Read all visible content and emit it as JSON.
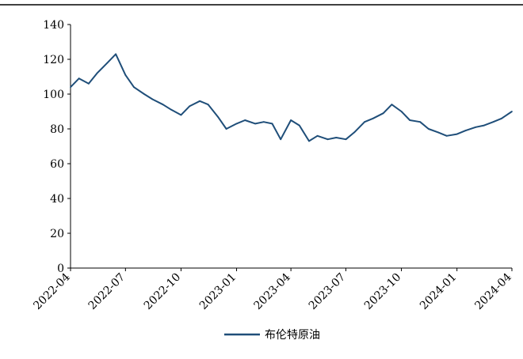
{
  "chart_data": {
    "type": "line",
    "title": "",
    "xlabel": "",
    "ylabel": "",
    "ylim": [
      0,
      140
    ],
    "y_ticks": [
      0,
      20,
      40,
      60,
      80,
      100,
      120,
      140
    ],
    "x_ticks": [
      "2022-04",
      "2022-07",
      "2022-10",
      "2023-01",
      "2023-04",
      "2023-07",
      "2023-10",
      "2024-01",
      "2024-04"
    ],
    "grid": false,
    "legend_position": "bottom",
    "series": [
      {
        "name": "布伦特原油",
        "color": "#1F4E79",
        "x": [
          "2022-04-01",
          "2022-04-15",
          "2022-05-01",
          "2022-05-15",
          "2022-06-01",
          "2022-06-15",
          "2022-07-01",
          "2022-07-15",
          "2022-08-01",
          "2022-08-15",
          "2022-09-01",
          "2022-09-15",
          "2022-10-01",
          "2022-10-15",
          "2022-11-01",
          "2022-11-15",
          "2022-12-01",
          "2022-12-15",
          "2023-01-01",
          "2023-01-15",
          "2023-02-01",
          "2023-02-15",
          "2023-03-01",
          "2023-03-15",
          "2023-04-01",
          "2023-04-15",
          "2023-05-01",
          "2023-05-15",
          "2023-06-01",
          "2023-06-15",
          "2023-07-01",
          "2023-07-15",
          "2023-08-01",
          "2023-08-15",
          "2023-09-01",
          "2023-09-15",
          "2023-10-01",
          "2023-10-15",
          "2023-11-01",
          "2023-11-15",
          "2023-12-01",
          "2023-12-15",
          "2024-01-01",
          "2024-01-15",
          "2024-02-01",
          "2024-02-15",
          "2024-03-01",
          "2024-03-15",
          "2024-04-01"
        ],
        "values": [
          104,
          109,
          106,
          112,
          118,
          123,
          111,
          104,
          100,
          97,
          94,
          91,
          88,
          93,
          96,
          94,
          87,
          80,
          83,
          85,
          83,
          84,
          83,
          74,
          85,
          82,
          73,
          76,
          74,
          75,
          74,
          78,
          84,
          86,
          89,
          94,
          90,
          85,
          84,
          80,
          78,
          76,
          77,
          79,
          81,
          82,
          84,
          86,
          90
        ]
      }
    ]
  }
}
